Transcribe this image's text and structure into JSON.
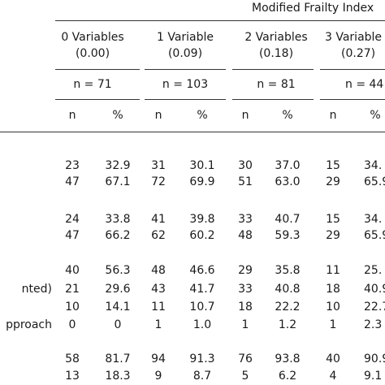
{
  "table": {
    "group_header": "Modified Frailty Index",
    "groups": [
      {
        "line1": "0 Variables",
        "line2": "(0.00)",
        "n_label": "n = 71"
      },
      {
        "line1": "1 Variable",
        "line2": "(0.09)",
        "n_label": "n = 103"
      },
      {
        "line1": "2 Variables",
        "line2": "(0.18)",
        "n_label": "n = 81"
      },
      {
        "line1": "3 Variable",
        "line2": "(0.27)",
        "n_label": "n = 44"
      }
    ],
    "subheaders": [
      "n",
      "%",
      "n",
      "%",
      "n",
      "%",
      "n",
      "%"
    ],
    "row_labels": [
      "",
      "",
      "",
      "",
      "",
      "nted)",
      "",
      "pproach",
      "",
      ""
    ],
    "rows": [
      [
        "23",
        "32.9",
        "31",
        "30.1",
        "30",
        "37.0",
        "15",
        "34."
      ],
      [
        "47",
        "67.1",
        "72",
        "69.9",
        "51",
        "63.0",
        "29",
        "65.9"
      ],
      [
        "24",
        "33.8",
        "41",
        "39.8",
        "33",
        "40.7",
        "15",
        "34."
      ],
      [
        "47",
        "66.2",
        "62",
        "60.2",
        "48",
        "59.3",
        "29",
        "65.9"
      ],
      [
        "40",
        "56.3",
        "48",
        "46.6",
        "29",
        "35.8",
        "11",
        "25."
      ],
      [
        "21",
        "29.6",
        "43",
        "41.7",
        "33",
        "40.8",
        "18",
        "40.9"
      ],
      [
        "10",
        "14.1",
        "11",
        "10.7",
        "18",
        "22.2",
        "10",
        "22.7"
      ],
      [
        "0",
        "0",
        "1",
        "1.0",
        "1",
        "1.2",
        "1",
        "2.3"
      ],
      [
        "58",
        "81.7",
        "94",
        "91.3",
        "76",
        "93.8",
        "40",
        "90.9"
      ],
      [
        "13",
        "18.3",
        "9",
        "8.7",
        "5",
        "6.2",
        "4",
        "9.1"
      ]
    ]
  }
}
